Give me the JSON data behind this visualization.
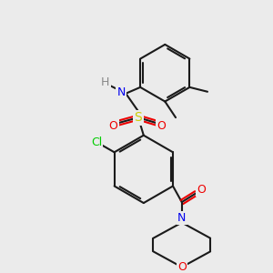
{
  "bg_color": "#ebebeb",
  "bond_color": "#1a1a1a",
  "bond_width": 1.5,
  "atom_colors": {
    "N": "#0000ee",
    "O": "#ee0000",
    "S": "#cccc00",
    "Cl": "#00cc00",
    "H": "#888888",
    "C": "#1a1a1a"
  },
  "font_size": 9,
  "label_font_size": 9
}
